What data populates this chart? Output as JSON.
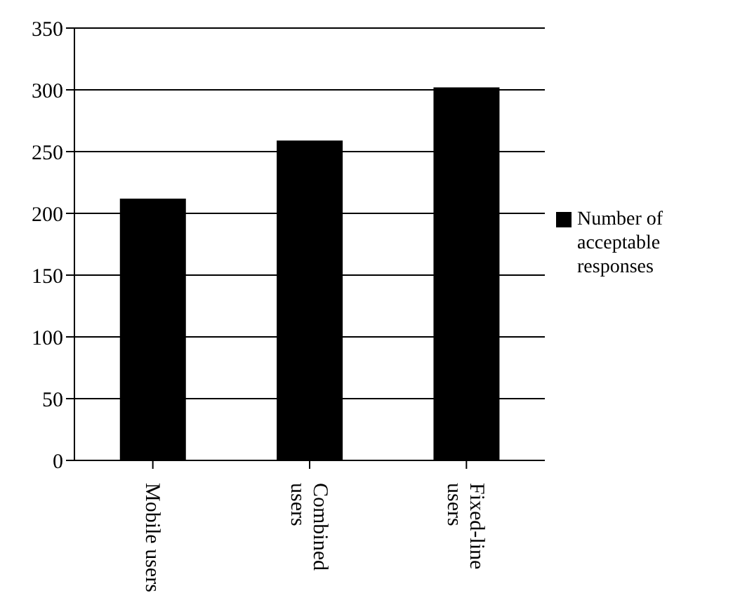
{
  "chart_data": {
    "type": "bar",
    "categories": [
      "Mobile users",
      "Combined users",
      "Fixed-line users"
    ],
    "series": [
      {
        "name": "Number of acceptable responses",
        "color": "#000000",
        "values": [
          212,
          259,
          302
        ]
      }
    ],
    "ylim": [
      0,
      350
    ],
    "yticks": [
      0,
      50,
      100,
      150,
      200,
      250,
      300,
      350
    ],
    "grid": "y",
    "legend": "right"
  }
}
